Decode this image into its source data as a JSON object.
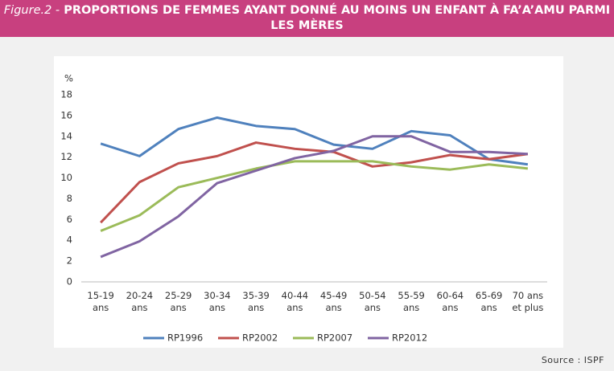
{
  "header": {
    "figure_label": "Figure.2 -",
    "title": "PROPORTIONS DE FEMMES AYANT DONNÉ AU MOINS UN ENFANT À FA’A’AMU PARMI LES MÈRES"
  },
  "chart_data": {
    "type": "line",
    "y_label": "%",
    "categories": [
      "15-19 ans",
      "20-24 ans",
      "25-29 ans",
      "30-34 ans",
      "35-39 ans",
      "40-44 ans",
      "45-49 ans",
      "50-54 ans",
      "55-59 ans",
      "60-64 ans",
      "65-69 ans",
      "70 ans et plus"
    ],
    "series": [
      {
        "name": "RP1996",
        "color": "#4f81bd",
        "values": [
          13.3,
          12.1,
          14.7,
          15.8,
          15.0,
          14.7,
          13.2,
          12.8,
          14.5,
          14.1,
          11.8,
          11.3
        ]
      },
      {
        "name": "RP2002",
        "color": "#c0504d",
        "values": [
          5.7,
          9.6,
          11.4,
          12.1,
          13.4,
          12.8,
          12.5,
          11.1,
          11.5,
          12.2,
          11.8,
          12.3
        ]
      },
      {
        "name": "RP2007",
        "color": "#9bbb59",
        "values": [
          4.9,
          6.4,
          9.1,
          10.0,
          10.9,
          11.6,
          11.6,
          11.6,
          11.1,
          10.8,
          11.3,
          10.9
        ]
      },
      {
        "name": "RP2012",
        "color": "#8064a2",
        "values": [
          2.4,
          3.9,
          6.3,
          9.5,
          10.7,
          11.9,
          12.6,
          14.0,
          14.0,
          12.5,
          12.5,
          12.3
        ]
      }
    ],
    "ylim": [
      0,
      18
    ],
    "yticks": [
      0,
      2,
      4,
      6,
      8,
      10,
      12,
      14,
      16,
      18
    ],
    "grid": false,
    "legend": "bottom"
  },
  "footer": {
    "source": "Source : ISPF"
  }
}
